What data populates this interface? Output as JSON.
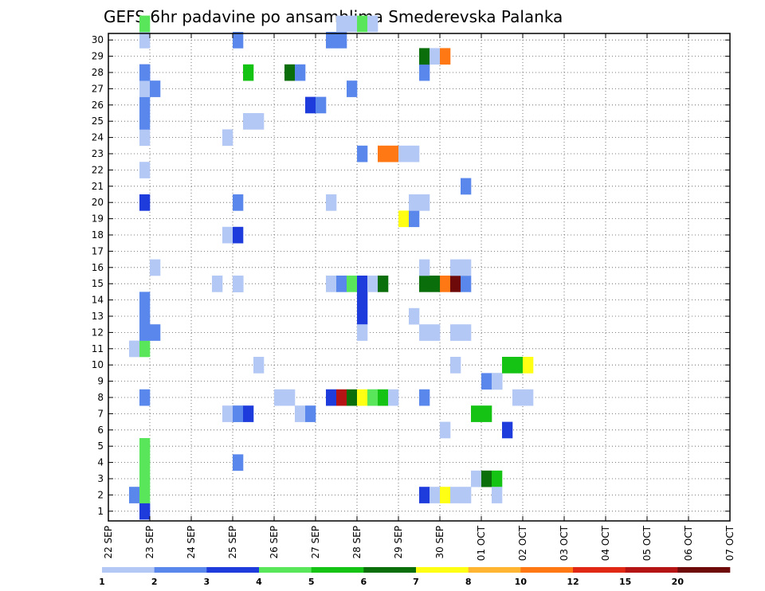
{
  "chart_data": {
    "type": "heatmap",
    "title": "GEFS 6hr padavine po ansamblima Smederevska Palanka",
    "xlabel": "",
    "ylabel": "",
    "x_tick_labels": [
      "22 SEP",
      "23 SEP",
      "24 SEP",
      "25 SEP",
      "26 SEP",
      "27 SEP",
      "28 SEP",
      "29 SEP",
      "30 SEP",
      "01 OCT",
      "02 OCT",
      "03 OCT",
      "04 OCT",
      "05 OCT",
      "06 OCT",
      "07 OCT"
    ],
    "xlim": [
      0,
      60
    ],
    "x_step_hours": 6,
    "y_tick_labels": [
      "1",
      "2",
      "3",
      "4",
      "5",
      "6",
      "7",
      "8",
      "9",
      "10",
      "11",
      "12",
      "13",
      "14",
      "15",
      "16",
      "17",
      "18",
      "19",
      "20",
      "21",
      "22",
      "23",
      "24",
      "25",
      "26",
      "27",
      "28",
      "29",
      "30"
    ],
    "ylim": [
      0,
      30
    ],
    "grid": true,
    "colorbar": {
      "labels": [
        "1",
        "2",
        "3",
        "4",
        "5",
        "6",
        "7",
        "8",
        "10",
        "12",
        "15",
        "20"
      ],
      "colors": [
        "#b4c8f5",
        "#5a87eb",
        "#1e3cdc",
        "#5ae65a",
        "#14c314",
        "#0a6e0a",
        "#ffff14",
        "#ffb432",
        "#ff7814",
        "#e12814",
        "#b41414",
        "#6e0a0a"
      ]
    },
    "cells": [
      [
        3,
        1,
        0
      ],
      [
        3,
        2,
        0
      ],
      [
        2,
        1,
        1
      ],
      [
        3,
        3,
        1
      ],
      [
        3,
        3,
        2
      ],
      [
        3,
        3,
        3
      ],
      [
        3,
        3,
        4
      ],
      [
        3,
        1,
        7
      ],
      [
        2,
        0,
        10
      ],
      [
        3,
        3,
        10
      ],
      [
        3,
        1,
        11
      ],
      [
        3,
        1,
        12
      ],
      [
        3,
        1,
        13
      ],
      [
        4,
        1,
        11
      ],
      [
        4,
        0,
        15
      ],
      [
        3,
        2,
        19
      ],
      [
        3,
        0,
        21
      ],
      [
        3,
        0,
        23
      ],
      [
        3,
        1,
        24
      ],
      [
        3,
        1,
        25
      ],
      [
        3,
        0,
        26
      ],
      [
        3,
        2,
        27
      ],
      [
        4,
        1,
        26
      ],
      [
        3,
        1,
        27
      ],
      [
        3,
        0,
        29
      ],
      [
        3,
        3,
        30
      ],
      [
        10,
        0,
        14
      ],
      [
        11,
        0,
        6
      ],
      [
        11,
        0,
        17
      ],
      [
        11,
        0,
        23
      ],
      [
        12,
        1,
        3
      ],
      [
        12,
        0,
        6
      ],
      [
        12,
        1,
        6
      ],
      [
        12,
        1,
        14
      ],
      [
        12,
        0,
        14
      ],
      [
        12,
        2,
        17
      ],
      [
        12,
        1,
        19
      ],
      [
        12,
        1,
        29
      ],
      [
        13,
        2,
        6
      ],
      [
        13,
        4,
        27
      ],
      [
        14,
        0,
        9
      ],
      [
        13,
        0,
        24
      ],
      [
        14,
        0,
        24
      ],
      [
        16,
        0,
        7
      ],
      [
        17,
        0,
        7
      ],
      [
        17,
        5,
        27
      ],
      [
        18,
        1,
        27
      ],
      [
        19,
        2,
        25
      ],
      [
        20,
        1,
        25
      ],
      [
        18,
        0,
        6
      ],
      [
        19,
        1,
        6
      ],
      [
        21,
        0,
        19
      ],
      [
        21,
        1,
        29
      ],
      [
        22,
        1,
        29
      ],
      [
        21,
        0,
        14
      ],
      [
        21,
        2,
        7
      ],
      [
        22,
        1,
        14
      ],
      [
        22,
        10,
        7
      ],
      [
        23,
        3,
        14
      ],
      [
        23,
        5,
        7
      ],
      [
        24,
        2,
        14
      ],
      [
        24,
        6,
        7
      ],
      [
        24,
        2,
        13
      ],
      [
        24,
        2,
        12
      ],
      [
        24,
        0,
        11
      ],
      [
        23,
        1,
        26
      ],
      [
        22,
        0,
        30
      ],
      [
        23,
        0,
        30
      ],
      [
        24,
        3,
        30
      ],
      [
        25,
        0,
        30
      ],
      [
        24,
        1,
        22
      ],
      [
        25,
        0,
        7
      ],
      [
        25,
        0,
        14
      ],
      [
        25,
        3,
        7
      ],
      [
        26,
        5,
        14
      ],
      [
        26,
        4,
        7
      ],
      [
        27,
        0,
        7
      ],
      [
        26,
        8,
        22
      ],
      [
        27,
        8,
        22
      ],
      [
        28,
        0,
        22
      ],
      [
        29,
        0,
        22
      ],
      [
        28,
        6,
        18
      ],
      [
        29,
        1,
        18
      ],
      [
        29,
        0,
        19
      ],
      [
        30,
        0,
        19
      ],
      [
        29,
        0,
        12
      ],
      [
        30,
        2,
        1
      ],
      [
        30,
        1,
        7
      ],
      [
        30,
        0,
        11
      ],
      [
        30,
        5,
        14
      ],
      [
        31,
        5,
        14
      ],
      [
        32,
        8,
        14
      ],
      [
        33,
        11,
        14
      ],
      [
        34,
        1,
        14
      ],
      [
        30,
        1,
        27
      ],
      [
        30,
        5,
        28
      ],
      [
        31,
        0,
        28
      ],
      [
        32,
        8,
        28
      ],
      [
        31,
        0,
        1
      ],
      [
        32,
        6,
        1
      ],
      [
        31,
        0,
        11
      ],
      [
        32,
        0,
        5
      ],
      [
        30,
        0,
        15
      ],
      [
        33,
        0,
        15
      ],
      [
        34,
        0,
        15
      ],
      [
        33,
        0,
        11
      ],
      [
        34,
        0,
        11
      ],
      [
        33,
        0,
        1
      ],
      [
        34,
        0,
        1
      ],
      [
        33,
        0,
        9
      ],
      [
        34,
        1,
        20
      ],
      [
        35,
        4,
        6
      ],
      [
        36,
        4,
        6
      ],
      [
        35,
        0,
        2
      ],
      [
        36,
        5,
        2
      ],
      [
        37,
        4,
        2
      ],
      [
        37,
        0,
        1
      ],
      [
        36,
        1,
        8
      ],
      [
        37,
        1,
        8
      ],
      [
        37,
        0,
        8
      ],
      [
        38,
        4,
        9
      ],
      [
        39,
        4,
        9
      ],
      [
        40,
        6,
        9
      ],
      [
        38,
        2,
        5
      ],
      [
        39,
        0,
        7
      ],
      [
        40,
        0,
        7
      ]
    ]
  }
}
